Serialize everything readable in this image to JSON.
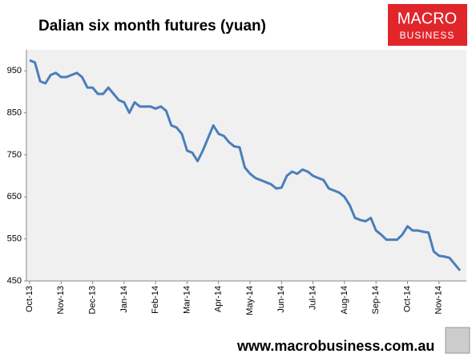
{
  "chart_data": {
    "type": "line",
    "title": "Dalian six month futures (yuan)",
    "logo_line1": "MACRO",
    "logo_line2": "BUSINESS",
    "footer": "www.macrobusiness.com.au",
    "color": "#4a7ebb",
    "ylim": [
      450,
      1000
    ],
    "yticks": [
      450,
      550,
      650,
      750,
      850,
      950
    ],
    "grid": false,
    "categories": [
      "Oct-13",
      null,
      null,
      null,
      null,
      null,
      "Nov-13",
      null,
      null,
      null,
      null,
      null,
      "Dec-13",
      null,
      null,
      null,
      null,
      null,
      "Jan-14",
      null,
      null,
      null,
      null,
      null,
      "Feb-14",
      null,
      null,
      null,
      null,
      null,
      "Mar-14",
      null,
      null,
      null,
      null,
      null,
      "Apr-14",
      null,
      null,
      null,
      null,
      null,
      "May-14",
      null,
      null,
      null,
      null,
      null,
      "Jun-14",
      null,
      null,
      null,
      null,
      null,
      "Jul-14",
      null,
      null,
      null,
      null,
      null,
      "Aug-14",
      null,
      null,
      null,
      null,
      null,
      "Sep-14",
      null,
      null,
      null,
      null,
      null,
      "Oct-14",
      null,
      null,
      null,
      null,
      null,
      "Nov-14",
      null,
      null,
      null,
      null
    ],
    "values": [
      975,
      970,
      925,
      920,
      940,
      945,
      935,
      935,
      940,
      945,
      935,
      910,
      910,
      895,
      895,
      910,
      895,
      880,
      875,
      850,
      875,
      865,
      865,
      865,
      860,
      865,
      855,
      820,
      815,
      800,
      760,
      755,
      735,
      760,
      790,
      820,
      800,
      795,
      780,
      770,
      768,
      720,
      705,
      695,
      690,
      685,
      680,
      670,
      672,
      700,
      710,
      705,
      715,
      710,
      700,
      695,
      690,
      670,
      665,
      660,
      650,
      630,
      600,
      595,
      592,
      600,
      570,
      560,
      548,
      548,
      548,
      560,
      580,
      570,
      570,
      567,
      565,
      520,
      510,
      508,
      505,
      490,
      475
    ]
  }
}
